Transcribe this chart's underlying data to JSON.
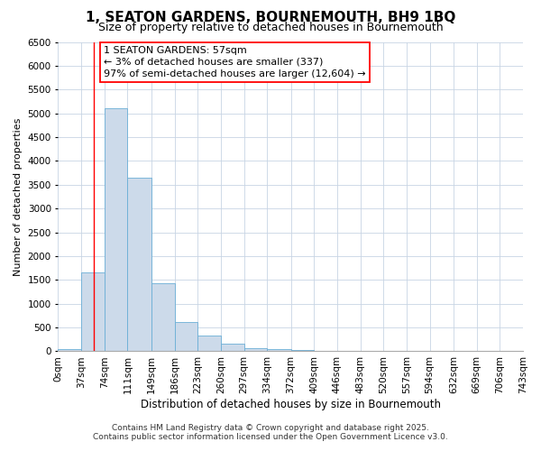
{
  "title": "1, SEATON GARDENS, BOURNEMOUTH, BH9 1BQ",
  "subtitle": "Size of property relative to detached houses in Bournemouth",
  "xlabel": "Distribution of detached houses by size in Bournemouth",
  "ylabel": "Number of detached properties",
  "bin_edges": [
    0,
    37,
    74,
    111,
    149,
    186,
    223,
    260,
    297,
    334,
    372,
    409,
    446,
    483,
    520,
    557,
    594,
    632,
    669,
    706,
    743
  ],
  "bar_heights": [
    50,
    1650,
    5100,
    3650,
    1430,
    620,
    330,
    155,
    70,
    50,
    20,
    0,
    0,
    0,
    0,
    0,
    0,
    0,
    0,
    0
  ],
  "bar_color": "#ccdaea",
  "bar_edge_color": "#6aaed6",
  "property_line_x": 57,
  "property_line_color": "red",
  "annotation_text": "1 SEATON GARDENS: 57sqm\n← 3% of detached houses are smaller (337)\n97% of semi-detached houses are larger (12,604) →",
  "annotation_box_color": "white",
  "annotation_box_edge_color": "red",
  "ylim": [
    0,
    6500
  ],
  "yticks": [
    0,
    500,
    1000,
    1500,
    2000,
    2500,
    3000,
    3500,
    4000,
    4500,
    5000,
    5500,
    6000,
    6500
  ],
  "footer_line1": "Contains HM Land Registry data © Crown copyright and database right 2025.",
  "footer_line2": "Contains public sector information licensed under the Open Government Licence v3.0.",
  "background_color": "#ffffff",
  "grid_color": "#c8d4e4",
  "title_fontsize": 11,
  "subtitle_fontsize": 9,
  "axis_label_fontsize": 8.5,
  "ylabel_fontsize": 8,
  "tick_label_fontsize": 7.5,
  "annotation_fontsize": 8,
  "footer_fontsize": 6.5
}
